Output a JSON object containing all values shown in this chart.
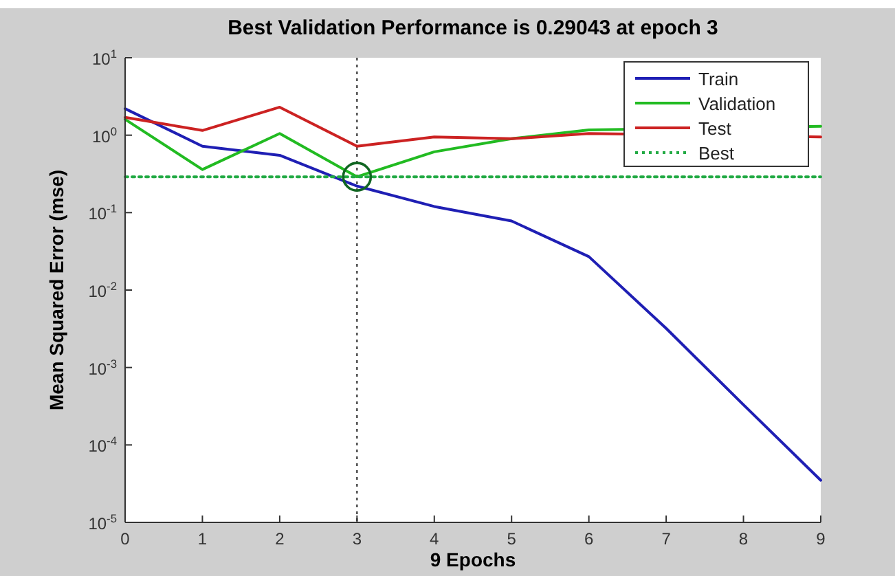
{
  "chart_data": {
    "type": "line",
    "title": "Best Validation Performance is 0.29043 at epoch 3",
    "xlabel": "9 Epochs",
    "ylabel": "Mean Squared Error  (mse)",
    "log": "y",
    "grid": false,
    "legend": "top right",
    "xlim": [
      0,
      9
    ],
    "xticks": [
      0,
      1,
      2,
      3,
      4,
      5,
      6,
      7,
      8,
      9
    ],
    "ylim": [
      1e-05,
      10
    ],
    "yticks": [
      {
        "value": 1e-05,
        "label": "10$^{-5}$"
      },
      {
        "value": 0.0001,
        "label": "10$^{-4}$"
      },
      {
        "value": 0.001,
        "label": "10$^{-3}$"
      },
      {
        "value": 0.01,
        "label": "10$^{-2}$"
      },
      {
        "value": 0.1,
        "label": "10$^{-1}$"
      },
      {
        "value": 1,
        "label": "10$^{0}$"
      },
      {
        "value": 10,
        "label": "10$^{1}$"
      }
    ],
    "series": [
      {
        "name": "Train",
        "color": "#1f1fb4",
        "x": [
          0,
          1,
          2,
          3,
          4,
          5,
          6,
          7,
          8,
          9
        ],
        "values": [
          2.2,
          0.72,
          0.55,
          0.22,
          0.12,
          0.078,
          0.027,
          0.0032,
          0.00033,
          3.5e-05
        ]
      },
      {
        "name": "Validation",
        "color": "#22bb22",
        "x": [
          0,
          1,
          2,
          3,
          4,
          5,
          6,
          7,
          8,
          9
        ],
        "values": [
          1.6,
          0.36,
          1.05,
          0.29043,
          0.61,
          0.9,
          1.17,
          null,
          null,
          1.3
        ]
      },
      {
        "name": "Test",
        "color": "#cc2222",
        "x": [
          0,
          1,
          2,
          3,
          4,
          5,
          6,
          7,
          8,
          9
        ],
        "values": [
          1.7,
          1.15,
          2.3,
          0.72,
          0.95,
          0.9,
          1.05,
          null,
          null,
          0.95
        ]
      },
      {
        "name": "Best",
        "color": "#22aa44",
        "line_style": "dotted",
        "x": [
          0,
          9
        ],
        "values": [
          0.29043,
          0.29043
        ]
      },
      {
        "type": "scatter",
        "color": "#116622",
        "marker": "circle",
        "x": [
          3
        ],
        "values": [
          0.29043
        ]
      }
    ],
    "ref_lines": [
      {
        "axis": "x",
        "value": 3,
        "color": "#444444",
        "line_style": "dotted"
      }
    ]
  }
}
